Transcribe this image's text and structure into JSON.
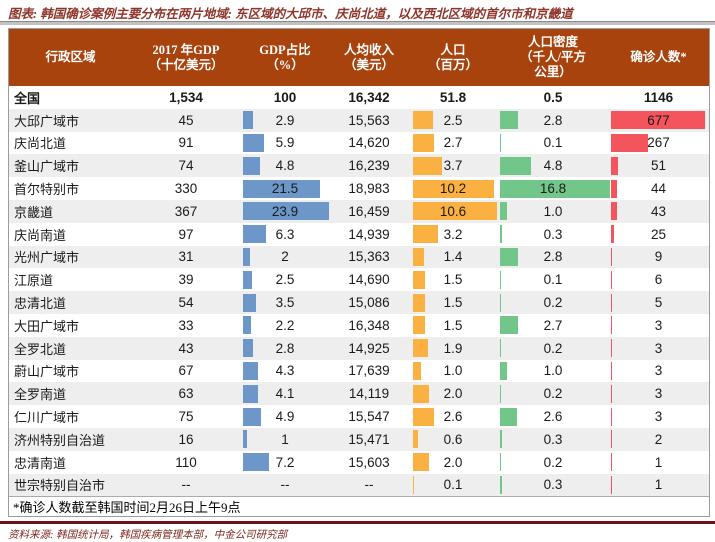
{
  "title": "图表: 韩国确诊案例主要分布在两片地域: 东区域的大邱市、庆尚北道，以及西北区域的首尔市和京畿道",
  "footnote": "*确诊人数截至韩国时间2月26日上午9点",
  "source": "资料来源: 韩国统计局，韩国疾病管理本部，中金公司研究部",
  "colors": {
    "header_bg": "#A8430E",
    "stripe": "#EEEEEE",
    "bar_blue": "#6D96C9",
    "bar_orange": "#FBB042",
    "bar_green": "#72C689",
    "bar_red": "#F4555C",
    "title_color": "#8E352C",
    "source_color": "#7E2720",
    "rule_color": "#70121A"
  },
  "table": {
    "headers": [
      "行政区域",
      "2017 年GDP\n（十亿美元）",
      "GDP占比\n（%）",
      "人均收入\n（美元）",
      "人口\n（百万）",
      "人口密度\n（千人/平方\n公里）",
      "确诊人数*"
    ],
    "rows": [
      {
        "cells": [
          "全国",
          "1,534",
          "100",
          "16,342",
          "51.8",
          "0.5",
          "1146"
        ],
        "bars": [
          null,
          null,
          null,
          null
        ],
        "bold": true
      },
      {
        "cells": [
          "大邱广域市",
          "45",
          "2.9",
          "15,563",
          "2.5",
          "2.8",
          "677"
        ],
        "bars": [
          2.9,
          2.5,
          2.8,
          677
        ]
      },
      {
        "cells": [
          "庆尚北道",
          "91",
          "5.9",
          "14,620",
          "2.7",
          "0.1",
          "267"
        ],
        "bars": [
          5.9,
          2.7,
          0.1,
          267
        ]
      },
      {
        "cells": [
          "釜山广域市",
          "74",
          "4.8",
          "16,239",
          "3.7",
          "4.8",
          "51"
        ],
        "bars": [
          4.8,
          3.7,
          4.8,
          51
        ]
      },
      {
        "cells": [
          "首尔特别市",
          "330",
          "21.5",
          "18,983",
          "10.2",
          "16.8",
          "44"
        ],
        "bars": [
          21.5,
          10.2,
          16.8,
          44
        ]
      },
      {
        "cells": [
          "京畿道",
          "367",
          "23.9",
          "16,459",
          "10.6",
          "1.0",
          "43"
        ],
        "bars": [
          23.9,
          10.6,
          1.0,
          43
        ]
      },
      {
        "cells": [
          "庆尚南道",
          "97",
          "6.3",
          "14,939",
          "3.2",
          "0.3",
          "25"
        ],
        "bars": [
          6.3,
          3.2,
          0.3,
          25
        ]
      },
      {
        "cells": [
          "光州广域市",
          "31",
          "2",
          "15,363",
          "1.4",
          "2.8",
          "9"
        ],
        "bars": [
          2,
          1.4,
          2.8,
          9
        ]
      },
      {
        "cells": [
          "江原道",
          "39",
          "2.5",
          "14,690",
          "1.5",
          "0.1",
          "6"
        ],
        "bars": [
          2.5,
          1.5,
          0.1,
          6
        ]
      },
      {
        "cells": [
          "忠清北道",
          "54",
          "3.5",
          "15,086",
          "1.5",
          "0.2",
          "5"
        ],
        "bars": [
          3.5,
          1.5,
          0.2,
          5
        ]
      },
      {
        "cells": [
          "大田广域市",
          "33",
          "2.2",
          "16,348",
          "1.5",
          "2.7",
          "3"
        ],
        "bars": [
          2.2,
          1.5,
          2.7,
          3
        ]
      },
      {
        "cells": [
          "全罗北道",
          "43",
          "2.8",
          "14,925",
          "1.9",
          "0.2",
          "3"
        ],
        "bars": [
          2.8,
          1.9,
          0.2,
          3
        ]
      },
      {
        "cells": [
          "蔚山广域市",
          "67",
          "4.3",
          "17,639",
          "1.0",
          "1.0",
          "3"
        ],
        "bars": [
          4.3,
          1.0,
          1.0,
          3
        ]
      },
      {
        "cells": [
          "全罗南道",
          "63",
          "4.1",
          "14,119",
          "2.0",
          "0.2",
          "3"
        ],
        "bars": [
          4.1,
          2.0,
          0.2,
          3
        ]
      },
      {
        "cells": [
          "仁川广域市",
          "75",
          "4.9",
          "15,547",
          "2.6",
          "2.6",
          "3"
        ],
        "bars": [
          4.9,
          2.6,
          2.6,
          3
        ]
      },
      {
        "cells": [
          "济州特别自治道",
          "16",
          "1",
          "15,471",
          "0.6",
          "0.3",
          "2"
        ],
        "bars": [
          1,
          0.6,
          0.3,
          2
        ]
      },
      {
        "cells": [
          "忠清南道",
          "110",
          "7.2",
          "15,603",
          "2.0",
          "0.2",
          "1"
        ],
        "bars": [
          7.2,
          2.0,
          0.2,
          1
        ]
      },
      {
        "cells": [
          "世宗特别自治市",
          "--",
          "--",
          "--",
          "0.1",
          "0.3",
          "1"
        ],
        "bars": [
          null,
          0.1,
          0.3,
          1
        ]
      }
    ]
  },
  "chart_data": {
    "type": "table",
    "title": "韩国确诊案例主要分布在两片地域: 东区域的大邱市、庆尚北道，以及西北区域的首尔市和京畿道",
    "columns": [
      "行政区域",
      "2017年GDP（十亿美元）",
      "GDP占比（%）",
      "人均收入（美元）",
      "人口（百万）",
      "人口密度（千人/平方公里）",
      "确诊人数"
    ],
    "bar_columns": {
      "GDP占比（%）": {
        "color": "#6D96C9",
        "max": 23.9
      },
      "人口（百万）": {
        "color": "#FBB042",
        "max": 10.6
      },
      "人口密度（千人/平方公里）": {
        "color": "#72C689",
        "max": 16.8
      },
      "确诊人数": {
        "color": "#F4555C",
        "max": 677
      }
    },
    "rows": [
      [
        "全国",
        1534,
        100,
        16342,
        51.8,
        0.5,
        1146
      ],
      [
        "大邱广域市",
        45,
        2.9,
        15563,
        2.5,
        2.8,
        677
      ],
      [
        "庆尚北道",
        91,
        5.9,
        14620,
        2.7,
        0.1,
        267
      ],
      [
        "釜山广域市",
        74,
        4.8,
        16239,
        3.7,
        4.8,
        51
      ],
      [
        "首尔特别市",
        330,
        21.5,
        18983,
        10.2,
        16.8,
        44
      ],
      [
        "京畿道",
        367,
        23.9,
        16459,
        10.6,
        1.0,
        43
      ],
      [
        "庆尚南道",
        97,
        6.3,
        14939,
        3.2,
        0.3,
        25
      ],
      [
        "光州广域市",
        31,
        2,
        15363,
        1.4,
        2.8,
        9
      ],
      [
        "江原道",
        39,
        2.5,
        14690,
        1.5,
        0.1,
        6
      ],
      [
        "忠清北道",
        54,
        3.5,
        15086,
        1.5,
        0.2,
        5
      ],
      [
        "大田广域市",
        33,
        2.2,
        16348,
        1.5,
        2.7,
        3
      ],
      [
        "全罗北道",
        43,
        2.8,
        14925,
        1.9,
        0.2,
        3
      ],
      [
        "蔚山广域市",
        67,
        4.3,
        17639,
        1.0,
        1.0,
        3
      ],
      [
        "全罗南道",
        63,
        4.1,
        14119,
        2.0,
        0.2,
        3
      ],
      [
        "仁川广域市",
        75,
        4.9,
        15547,
        2.6,
        2.6,
        3
      ],
      [
        "济州特别自治道",
        16,
        1,
        15471,
        0.6,
        0.3,
        2
      ],
      [
        "忠清南道",
        110,
        7.2,
        15603,
        2.0,
        0.2,
        1
      ],
      [
        "世宗特别自治市",
        null,
        null,
        null,
        0.1,
        0.3,
        1
      ]
    ],
    "footnote": "*确诊人数截至韩国时间2月26日上午9点"
  }
}
